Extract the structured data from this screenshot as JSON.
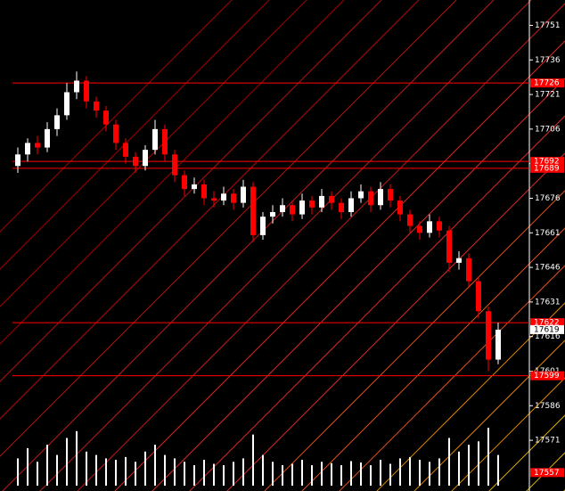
{
  "chart_data": {
    "type": "candlestick",
    "ylim": [
      17549,
      17762
    ],
    "yticks": [
      17571,
      17586,
      17601,
      17616,
      17631,
      17646,
      17661,
      17676,
      17691,
      17706,
      17721,
      17736,
      17751
    ],
    "bull_color": "#ffffff",
    "bear_color": "#ff0000",
    "candles": {
      "open": [
        17690,
        17695,
        17700,
        17698,
        17706,
        17712,
        17722,
        17727,
        17718,
        17714,
        17708,
        17700,
        17694,
        17690,
        17697,
        17706,
        17695,
        17686,
        17680,
        17682,
        17676,
        17675,
        17678,
        17674,
        17681,
        17660,
        17668,
        17670,
        17673,
        17669,
        17675,
        17672,
        17677,
        17674,
        17670,
        17676,
        17679,
        17673,
        17680,
        17675,
        17669,
        17664,
        17661,
        17666,
        17662,
        17648,
        17650,
        17640,
        17627,
        17606
      ],
      "high": [
        17698,
        17702,
        17703,
        17709,
        17715,
        17726,
        17731,
        17729,
        17720,
        17716,
        17710,
        17702,
        17696,
        17699,
        17710,
        17708,
        17697,
        17688,
        17685,
        17684,
        17679,
        17681,
        17680,
        17684,
        17683,
        17670,
        17673,
        17676,
        17675,
        17678,
        17677,
        17680,
        17679,
        17676,
        17679,
        17682,
        17681,
        17683,
        17682,
        17677,
        17671,
        17666,
        17669,
        17668,
        17664,
        17653,
        17652,
        17642,
        17629,
        17622
      ],
      "low": [
        17687,
        17692,
        17695,
        17696,
        17703,
        17710,
        17719,
        17715,
        17711,
        17705,
        17697,
        17691,
        17687,
        17688,
        17695,
        17692,
        17683,
        17677,
        17678,
        17673,
        17672,
        17673,
        17671,
        17672,
        17657,
        17658,
        17665,
        17668,
        17666,
        17667,
        17669,
        17670,
        17671,
        17667,
        17668,
        17674,
        17670,
        17671,
        17672,
        17666,
        17661,
        17658,
        17659,
        17659,
        17644,
        17645,
        17637,
        17624,
        17601,
        17604
      ],
      "close": [
        17695,
        17700,
        17698,
        17706,
        17712,
        17722,
        17727,
        17718,
        17714,
        17708,
        17700,
        17694,
        17690,
        17697,
        17706,
        17695,
        17686,
        17680,
        17682,
        17676,
        17675,
        17678,
        17674,
        17681,
        17660,
        17668,
        17670,
        17673,
        17669,
        17675,
        17672,
        17677,
        17674,
        17670,
        17676,
        17679,
        17673,
        17680,
        17675,
        17669,
        17664,
        17661,
        17666,
        17662,
        17648,
        17650,
        17640,
        17627,
        17606,
        17619
      ]
    },
    "volume": [
      40,
      55,
      35,
      60,
      45,
      70,
      80,
      50,
      45,
      40,
      38,
      42,
      35,
      50,
      60,
      45,
      40,
      35,
      30,
      38,
      32,
      30,
      35,
      40,
      75,
      45,
      35,
      30,
      32,
      38,
      30,
      35,
      33,
      30,
      36,
      34,
      30,
      38,
      32,
      40,
      42,
      38,
      35,
      40,
      70,
      50,
      60,
      65,
      85,
      45
    ],
    "volume_color": "#ffffff",
    "price_lines": [
      17726,
      17692,
      17689,
      17622,
      17599
    ],
    "line_color": "#ff0000",
    "current_price": 17619,
    "bottom_marker": 17557
  }
}
